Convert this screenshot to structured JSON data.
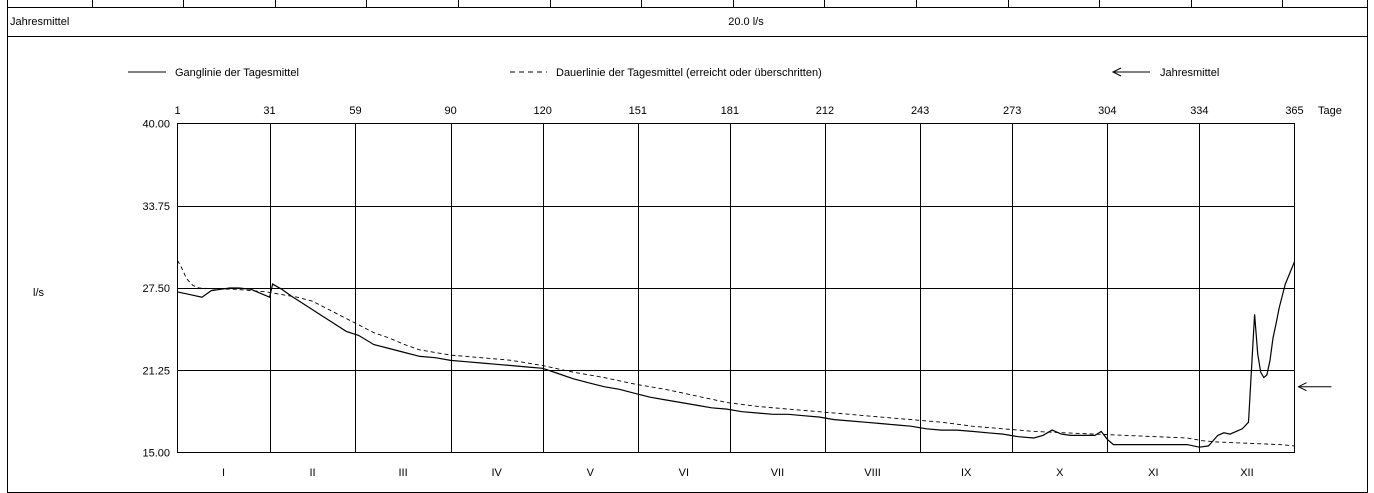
{
  "header": {
    "row_label": "Jahresmittel",
    "row_value": "20.0 l/s"
  },
  "legend": {
    "solid": "Ganglinie der Tagesmittel",
    "dashed": "Dauerlinie der Tagesmittel (erreicht oder überschritten)",
    "arrow": "Jahresmittel"
  },
  "chart_data": {
    "type": "line",
    "title": "",
    "xlabel": "Tage",
    "ylabel": "l/s",
    "xlim": [
      1,
      365
    ],
    "ylim": [
      15,
      40
    ],
    "grid": true,
    "legend_position": "top",
    "x_ticks": [
      1,
      31,
      59,
      90,
      120,
      151,
      181,
      212,
      243,
      273,
      304,
      334,
      365
    ],
    "y_ticks": [
      "15.00",
      "21.25",
      "27.50",
      "33.75",
      "40.00"
    ],
    "y_tick_values": [
      15,
      21.25,
      27.5,
      33.75,
      40
    ],
    "months": [
      "I",
      "II",
      "III",
      "IV",
      "V",
      "VI",
      "VII",
      "VIII",
      "IX",
      "X",
      "XI",
      "XII"
    ],
    "annual_mean": 20.0,
    "series": [
      {
        "name": "Ganglinie der Tagesmittel",
        "style": "solid",
        "x": [
          1,
          5,
          9,
          12,
          15,
          18,
          21,
          25,
          28,
          31,
          32,
          35,
          38,
          42,
          48,
          52,
          56,
          60,
          65,
          70,
          75,
          80,
          85,
          90,
          95,
          100,
          105,
          110,
          115,
          120,
          125,
          130,
          135,
          140,
          145,
          150,
          155,
          160,
          165,
          170,
          175,
          180,
          185,
          190,
          195,
          200,
          205,
          210,
          215,
          220,
          225,
          230,
          235,
          240,
          245,
          250,
          255,
          260,
          265,
          270,
          275,
          280,
          283,
          286,
          289,
          292,
          296,
          300,
          302,
          304,
          306,
          310,
          315,
          320,
          325,
          330,
          334,
          337,
          340,
          342,
          344,
          346,
          348,
          350,
          352,
          353,
          354,
          355,
          356,
          357,
          358,
          359,
          360,
          362,
          365
        ],
        "values": [
          27.2,
          27.0,
          26.8,
          27.3,
          27.4,
          27.5,
          27.5,
          27.4,
          27.1,
          26.8,
          27.8,
          27.4,
          26.9,
          26.3,
          25.4,
          24.8,
          24.2,
          23.9,
          23.2,
          22.9,
          22.6,
          22.3,
          22.2,
          22.0,
          21.9,
          21.8,
          21.7,
          21.6,
          21.5,
          21.4,
          21.0,
          20.6,
          20.3,
          20.0,
          19.8,
          19.5,
          19.2,
          19.0,
          18.8,
          18.6,
          18.4,
          18.3,
          18.1,
          18.0,
          17.9,
          17.9,
          17.8,
          17.7,
          17.5,
          17.4,
          17.3,
          17.2,
          17.1,
          17.0,
          16.8,
          16.7,
          16.7,
          16.6,
          16.5,
          16.4,
          16.2,
          16.1,
          16.3,
          16.7,
          16.4,
          16.3,
          16.3,
          16.3,
          16.6,
          16.0,
          15.6,
          15.6,
          15.6,
          15.6,
          15.6,
          15.6,
          15.4,
          15.5,
          16.3,
          16.5,
          16.4,
          16.6,
          16.8,
          17.3,
          25.5,
          22.5,
          21.1,
          20.7,
          20.9,
          22.0,
          23.7,
          24.8,
          26.0,
          27.8,
          29.5
        ]
      },
      {
        "name": "Dauerlinie der Tagesmittel (erreicht oder überschritten)",
        "style": "dashed",
        "x": [
          1,
          2,
          4,
          6,
          8,
          12,
          20,
          30,
          40,
          45,
          50,
          55,
          60,
          65,
          70,
          75,
          80,
          90,
          100,
          110,
          120,
          130,
          140,
          150,
          160,
          170,
          180,
          190,
          200,
          210,
          220,
          230,
          240,
          250,
          260,
          270,
          280,
          290,
          300,
          310,
          320,
          330,
          335,
          340,
          350,
          360,
          365
        ],
        "values": [
          29.6,
          29.2,
          28.2,
          27.7,
          27.5,
          27.45,
          27.4,
          27.2,
          26.8,
          26.5,
          25.9,
          25.3,
          24.7,
          24.1,
          23.7,
          23.2,
          22.8,
          22.4,
          22.2,
          22.0,
          21.6,
          21.1,
          20.7,
          20.2,
          19.8,
          19.3,
          18.8,
          18.5,
          18.3,
          18.1,
          17.9,
          17.7,
          17.5,
          17.3,
          17.0,
          16.8,
          16.6,
          16.5,
          16.4,
          16.3,
          16.2,
          16.1,
          15.9,
          15.8,
          15.7,
          15.6,
          15.5
        ]
      }
    ]
  }
}
